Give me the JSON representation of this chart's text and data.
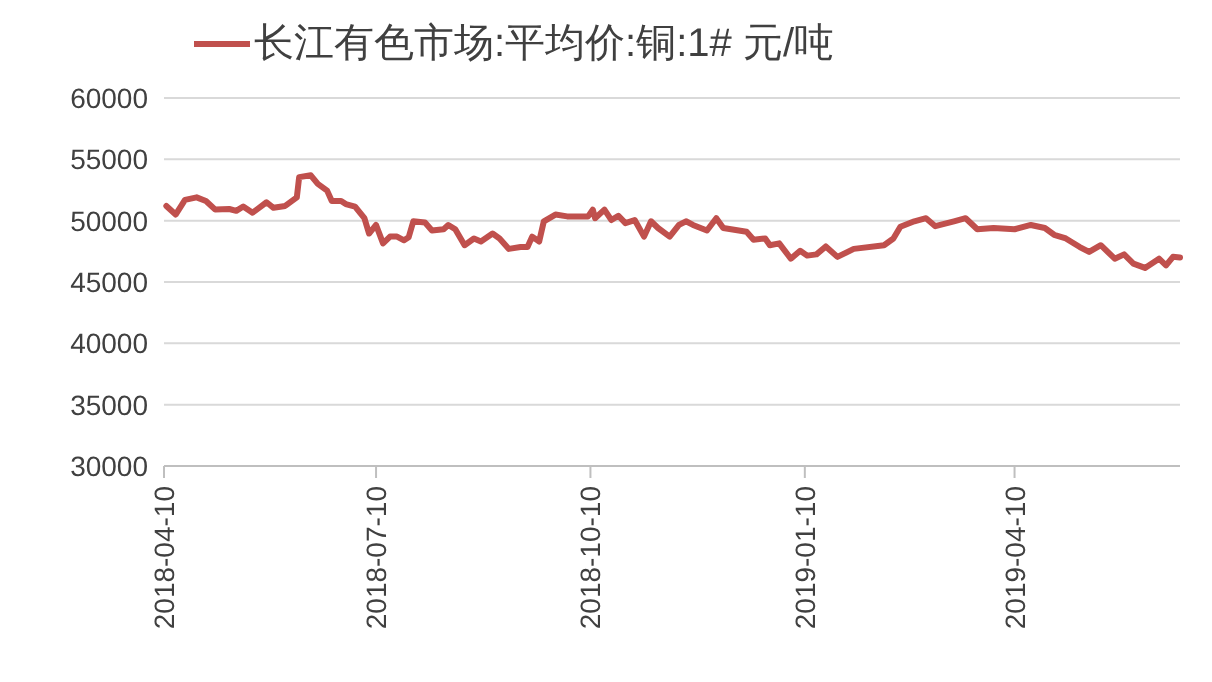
{
  "chart_data": {
    "type": "line",
    "x": [
      "2018-04-11",
      "2018-04-15",
      "2018-04-19",
      "2018-04-24",
      "2018-04-28",
      "2018-05-02",
      "2018-05-08",
      "2018-05-11",
      "2018-05-14",
      "2018-05-18",
      "2018-05-24",
      "2018-05-27",
      "2018-06-01",
      "2018-06-06",
      "2018-06-07",
      "2018-06-12",
      "2018-06-15",
      "2018-06-19",
      "2018-06-21",
      "2018-06-25",
      "2018-06-27",
      "2018-07-01",
      "2018-07-05",
      "2018-07-07",
      "2018-07-10",
      "2018-07-13",
      "2018-07-16",
      "2018-07-19",
      "2018-07-22",
      "2018-07-24",
      "2018-07-26",
      "2018-07-31",
      "2018-08-03",
      "2018-08-08",
      "2018-08-10",
      "2018-08-13",
      "2018-08-17",
      "2018-08-21",
      "2018-08-24",
      "2018-08-29",
      "2018-09-01",
      "2018-09-05",
      "2018-09-10",
      "2018-09-13",
      "2018-09-15",
      "2018-09-18",
      "2018-09-20",
      "2018-09-25",
      "2018-09-30",
      "2018-10-09",
      "2018-10-11",
      "2018-10-12",
      "2018-10-16",
      "2018-10-19",
      "2018-10-22",
      "2018-10-25",
      "2018-10-29",
      "2018-11-02",
      "2018-11-05",
      "2018-11-08",
      "2018-11-13",
      "2018-11-17",
      "2018-11-20",
      "2018-11-23",
      "2018-11-29",
      "2018-12-03",
      "2018-12-06",
      "2018-12-16",
      "2018-12-19",
      "2018-12-24",
      "2018-12-26",
      "2018-12-30",
      "2019-01-04",
      "2019-01-08",
      "2019-01-11",
      "2019-01-15",
      "2019-01-19",
      "2019-01-24",
      "2019-01-31",
      "2019-02-13",
      "2019-02-17",
      "2019-02-20",
      "2019-02-26",
      "2019-03-03",
      "2019-03-07",
      "2019-03-15",
      "2019-03-20",
      "2019-03-25",
      "2019-04-01",
      "2019-04-10",
      "2019-04-17",
      "2019-04-23",
      "2019-04-27",
      "2019-05-02",
      "2019-05-08",
      "2019-05-12",
      "2019-05-17",
      "2019-05-23",
      "2019-05-27",
      "2019-05-31",
      "2019-06-05",
      "2019-06-11",
      "2019-06-14",
      "2019-06-17",
      "2019-06-20"
    ],
    "series": [
      {
        "name": "长江有色市场:平均价:铜:1# 元/吨",
        "color": "#c0504d",
        "values": [
          51200,
          50500,
          51700,
          51900,
          51600,
          50900,
          50950,
          50800,
          51150,
          50650,
          51500,
          51050,
          51200,
          51900,
          53550,
          53700,
          53000,
          52450,
          51600,
          51600,
          51350,
          51150,
          50200,
          48950,
          49650,
          48150,
          48700,
          48700,
          48400,
          48650,
          49950,
          49850,
          49200,
          49300,
          49650,
          49300,
          48000,
          48550,
          48300,
          48950,
          48550,
          47700,
          47850,
          47850,
          48700,
          48300,
          49950,
          50500,
          50350,
          50350,
          50900,
          50200,
          50900,
          50050,
          50400,
          49800,
          50050,
          48700,
          49950,
          49400,
          48700,
          49650,
          49950,
          49650,
          49200,
          50200,
          49400,
          49100,
          48450,
          48550,
          48000,
          48150,
          46900,
          47550,
          47150,
          47250,
          47900,
          47050,
          47700,
          48000,
          48550,
          49500,
          49950,
          50200,
          49550,
          49950,
          50200,
          49300,
          49400,
          49300,
          49650,
          49400,
          48850,
          48550,
          47850,
          47450,
          48000,
          46900,
          47250,
          46500,
          46150,
          46900,
          46350,
          47050,
          47000
        ]
      }
    ],
    "xlim": [
      "2018-04-10",
      "2019-06-20"
    ],
    "xticks": [
      {
        "value": "2018-04-10",
        "label": "2018-04-10"
      },
      {
        "value": "2018-07-10",
        "label": "2018-07-10"
      },
      {
        "value": "2018-10-10",
        "label": "2018-10-10"
      },
      {
        "value": "2019-01-10",
        "label": "2019-01-10"
      },
      {
        "value": "2019-04-10",
        "label": "2019-04-10"
      }
    ],
    "ylim": [
      30000,
      60000
    ],
    "yticks": [
      30000,
      35000,
      40000,
      45000,
      50000,
      55000,
      60000
    ],
    "grid": "y",
    "legend": "top",
    "marker": "none",
    "line_style": "solid"
  }
}
